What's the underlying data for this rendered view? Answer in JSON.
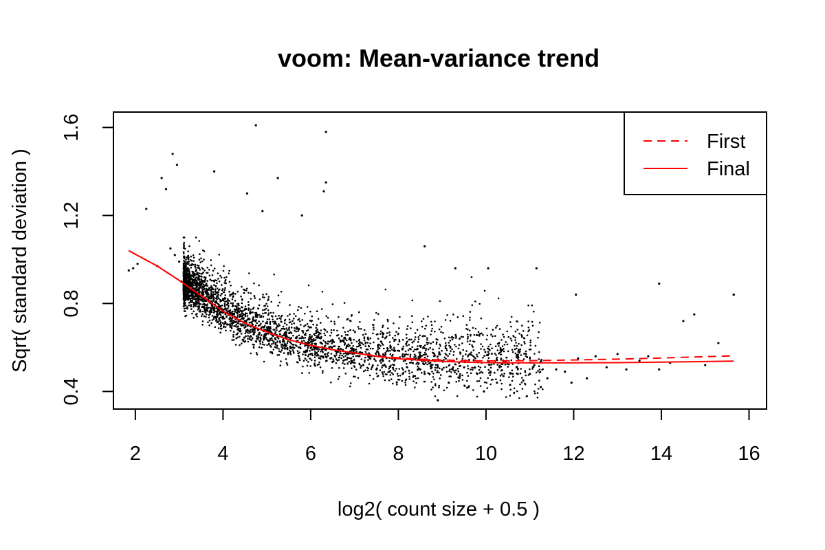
{
  "chart_data": {
    "type": "scatter",
    "title": "voom: Mean-variance trend",
    "xlabel": "log2( count size + 0.5 )",
    "ylabel": "Sqrt( standard deviation )",
    "xlim": [
      1.5,
      16.4
    ],
    "ylim": [
      0.32,
      1.67
    ],
    "xticks": [
      2,
      4,
      6,
      8,
      10,
      12,
      14,
      16
    ],
    "yticks": [
      0.4,
      0.8,
      1.2,
      1.6
    ],
    "grid": false,
    "point_color": "#000000",
    "line_color": "#ff0000",
    "legend": {
      "position": "top-right",
      "entries": [
        {
          "label": "First",
          "style": "dashed",
          "color": "#ff0000"
        },
        {
          "label": "Final",
          "style": "solid",
          "color": "#ff0000"
        }
      ]
    },
    "series": [
      {
        "name": "First",
        "kind": "line",
        "style": "dashed",
        "x": [
          1.85,
          2.5,
          3.0,
          3.5,
          4.0,
          4.5,
          5.0,
          5.5,
          6.0,
          6.5,
          7.0,
          7.5,
          8.0,
          8.5,
          9.0,
          9.5,
          10.0,
          10.5,
          11.0,
          12.0,
          13.0,
          14.0,
          15.0,
          15.65
        ],
        "y": [
          1.04,
          0.97,
          0.905,
          0.835,
          0.765,
          0.71,
          0.67,
          0.635,
          0.61,
          0.59,
          0.575,
          0.562,
          0.553,
          0.547,
          0.543,
          0.54,
          0.539,
          0.539,
          0.54,
          0.543,
          0.547,
          0.552,
          0.558,
          0.562
        ]
      },
      {
        "name": "Final",
        "kind": "line",
        "style": "solid",
        "x": [
          1.85,
          2.5,
          3.0,
          3.5,
          4.0,
          4.5,
          5.0,
          5.5,
          6.0,
          6.5,
          7.0,
          7.5,
          8.0,
          8.5,
          9.0,
          9.5,
          10.0,
          10.5,
          11.0,
          12.0,
          13.0,
          14.0,
          15.0,
          15.65
        ],
        "y": [
          1.04,
          0.97,
          0.905,
          0.835,
          0.765,
          0.71,
          0.67,
          0.635,
          0.61,
          0.59,
          0.575,
          0.56,
          0.549,
          0.542,
          0.537,
          0.533,
          0.531,
          0.53,
          0.53,
          0.53,
          0.531,
          0.533,
          0.536,
          0.538
        ]
      },
      {
        "kind": "points",
        "x": [
          1.85,
          1.95,
          2.05,
          2.25,
          2.5,
          2.6,
          2.7,
          2.8,
          2.9,
          3.0,
          3.05,
          3.1,
          3.2,
          3.3,
          3.4,
          3.55,
          3.6,
          3.75,
          3.85,
          4.0,
          4.05,
          4.15,
          4.25,
          4.35,
          4.5,
          4.6,
          4.7,
          4.75,
          4.8,
          4.95,
          5.05,
          5.2,
          5.3,
          5.45,
          5.6,
          5.7,
          5.85,
          5.95,
          6.0,
          6.1,
          6.25,
          6.35,
          6.45,
          6.6,
          6.75,
          6.85,
          7.0,
          7.1,
          7.2,
          7.35,
          7.5,
          7.65,
          7.8,
          7.9,
          8.1,
          8.2,
          8.35,
          8.5,
          8.6,
          8.75,
          8.9,
          9.0,
          9.15,
          9.25,
          9.4,
          9.5,
          9.6,
          9.8,
          9.95,
          10.1,
          10.25,
          10.4,
          10.55,
          10.7,
          10.85,
          11.0,
          11.1,
          11.25,
          11.4,
          11.6,
          11.8,
          11.95,
          12.1,
          12.3,
          12.5,
          12.75,
          13.0,
          13.2,
          13.5,
          13.7,
          13.95,
          14.2,
          14.5,
          14.75,
          15.0,
          15.3,
          15.65,
          4.75,
          6.35,
          2.85,
          2.95,
          3.8,
          5.25,
          6.3,
          6.35,
          4.55,
          4.9,
          5.8,
          8.6,
          9.3,
          10.05,
          11.15,
          12.05,
          13.95,
          15.65
        ],
        "y": [
          0.95,
          0.96,
          0.98,
          1.23,
          0.97,
          1.37,
          1.32,
          1.05,
          1.02,
          0.99,
          0.9,
          0.86,
          0.85,
          0.84,
          0.82,
          0.81,
          0.76,
          0.79,
          0.74,
          0.76,
          0.71,
          0.73,
          0.75,
          0.68,
          0.72,
          0.7,
          0.66,
          0.74,
          0.68,
          0.65,
          0.69,
          0.62,
          0.66,
          0.64,
          0.6,
          0.63,
          0.58,
          0.61,
          0.57,
          0.6,
          0.56,
          0.59,
          0.55,
          0.58,
          0.54,
          0.57,
          0.53,
          0.56,
          0.52,
          0.55,
          0.5,
          0.54,
          0.49,
          0.52,
          0.48,
          0.51,
          0.47,
          0.5,
          0.48,
          0.52,
          0.36,
          0.5,
          0.44,
          0.54,
          0.47,
          0.51,
          0.42,
          0.48,
          0.4,
          0.49,
          0.44,
          0.47,
          0.43,
          0.51,
          0.45,
          0.48,
          0.52,
          0.42,
          0.46,
          0.5,
          0.49,
          0.44,
          0.55,
          0.46,
          0.56,
          0.51,
          0.57,
          0.5,
          0.54,
          0.56,
          0.5,
          0.53,
          0.72,
          0.75,
          0.52,
          0.62,
          0.84,
          1.61,
          1.58,
          1.48,
          1.43,
          1.4,
          1.37,
          1.31,
          1.35,
          1.3,
          1.22,
          1.2,
          1.06,
          0.96,
          0.96,
          0.96,
          0.84,
          0.89,
          0.84
        ]
      }
    ]
  }
}
